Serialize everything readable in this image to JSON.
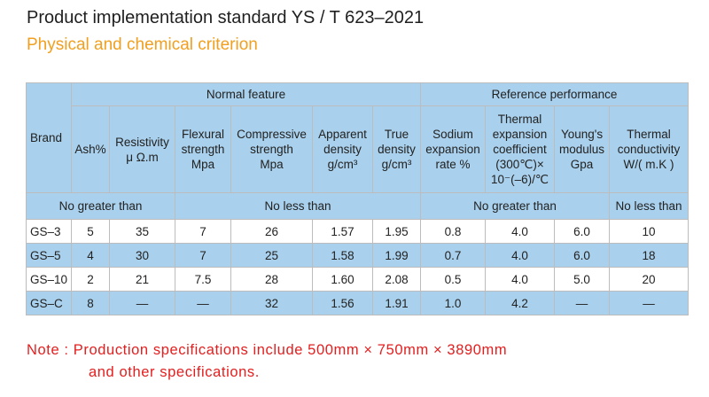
{
  "title": "Product implementation standard YS / T 623–2021",
  "subtitle": "Physical and chemical criterion",
  "table": {
    "group_normal": "Normal feature",
    "group_reference": "Reference performance",
    "headers": {
      "brand": "Brand",
      "ash": "Ash%",
      "resistivity": [
        "Resistivity",
        "μ Ω.m"
      ],
      "flexural": [
        "Flexural",
        "strength",
        "Mpa"
      ],
      "compressive": [
        "Compressive",
        "strength",
        "Mpa"
      ],
      "apparent": [
        "Apparent",
        "density",
        "g/cm³"
      ],
      "true_density": [
        "True",
        "density",
        "g/cm³"
      ],
      "sodium": [
        "Sodium",
        "expansion",
        "rate %"
      ],
      "thermal_exp": [
        "Thermal",
        "expansion",
        "coefficient",
        "(300℃)×",
        "10⁻(–6)/℃"
      ],
      "youngs": [
        "Young's",
        "modulus",
        "Gpa"
      ],
      "conductivity": [
        "Thermal",
        "conductivity",
        "W/( m.K )"
      ]
    },
    "limits": {
      "ng1": "No greater than",
      "nl1": "No less than",
      "ng2": "No greater than",
      "nl2": "No less than"
    },
    "rows": [
      {
        "brand": "GS–3",
        "ash": "5",
        "res": "35",
        "flex": "7",
        "comp": "26",
        "app": "1.57",
        "true": "1.95",
        "sod": "0.8",
        "therm": "4.0",
        "young": "6.0",
        "cond": "10"
      },
      {
        "brand": "GS–5",
        "ash": "4",
        "res": "30",
        "flex": "7",
        "comp": "25",
        "app": "1.58",
        "true": "1.99",
        "sod": "0.7",
        "therm": "4.0",
        "young": "6.0",
        "cond": "18"
      },
      {
        "brand": "GS–10",
        "ash": "2",
        "res": "21",
        "flex": "7.5",
        "comp": "28",
        "app": "1.60",
        "true": "2.08",
        "sod": "0.5",
        "therm": "4.0",
        "young": "5.0",
        "cond": "20"
      },
      {
        "brand": "GS–C",
        "ash": "8",
        "res": "—",
        "flex": "—",
        "comp": "32",
        "app": "1.56",
        "true": "1.91",
        "sod": "1.0",
        "therm": "4.2",
        "young": "—",
        "cond": "—"
      }
    ]
  },
  "note": {
    "line1": "Note : Production specifications include 500mm × 750mm × 3890mm",
    "line2": "and other specifications."
  }
}
